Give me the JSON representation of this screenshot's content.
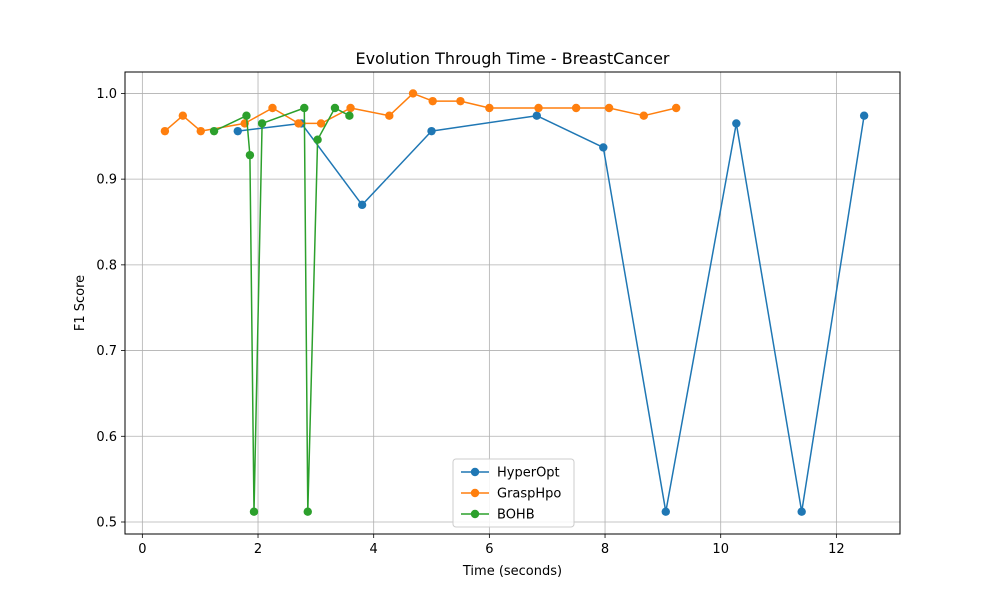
{
  "chart_data": {
    "type": "line",
    "title": "Evolution Through Time - BreastCancer",
    "xlabel": "Time (seconds)",
    "ylabel": "F1 Score",
    "xlim": [
      -0.3,
      13.1
    ],
    "ylim": [
      0.486,
      1.025
    ],
    "xticks": [
      0,
      2,
      4,
      6,
      8,
      10,
      12
    ],
    "yticks": [
      0.5,
      0.6,
      0.7,
      0.8,
      0.9,
      1.0
    ],
    "xtick_labels": [
      "0",
      "2",
      "4",
      "6",
      "8",
      "10",
      "12"
    ],
    "ytick_labels": [
      "0.5",
      "0.6",
      "0.7",
      "0.8",
      "0.9",
      "1.0"
    ],
    "grid": true,
    "legend_position": "bottom-center",
    "series": [
      {
        "name": "HyperOpt",
        "color": "#1f77b4",
        "x": [
          1.65,
          2.75,
          3.8,
          5.0,
          6.82,
          7.97,
          9.05,
          10.27,
          11.4,
          12.48
        ],
        "y": [
          0.956,
          0.965,
          0.87,
          0.956,
          0.974,
          0.937,
          0.512,
          0.965,
          0.512,
          0.974
        ]
      },
      {
        "name": "GraspHpo",
        "color": "#ff7f0e",
        "x": [
          0.39,
          0.7,
          1.01,
          1.77,
          2.25,
          2.7,
          3.09,
          3.6,
          4.27,
          4.68,
          5.02,
          5.5,
          6.0,
          6.85,
          7.5,
          8.07,
          8.67,
          9.23
        ],
        "y": [
          0.956,
          0.974,
          0.956,
          0.965,
          0.983,
          0.965,
          0.965,
          0.983,
          0.974,
          1.0,
          0.991,
          0.991,
          0.983,
          0.983,
          0.983,
          0.983,
          0.974,
          0.983
        ]
      },
      {
        "name": "BOHB",
        "color": "#2ca02c",
        "x": [
          1.24,
          1.8,
          1.86,
          1.93,
          2.07,
          2.8,
          2.86,
          3.03,
          3.33,
          3.58
        ],
        "y": [
          0.956,
          0.974,
          0.928,
          0.512,
          0.965,
          0.983,
          0.512,
          0.946,
          0.983,
          0.974
        ]
      }
    ]
  }
}
